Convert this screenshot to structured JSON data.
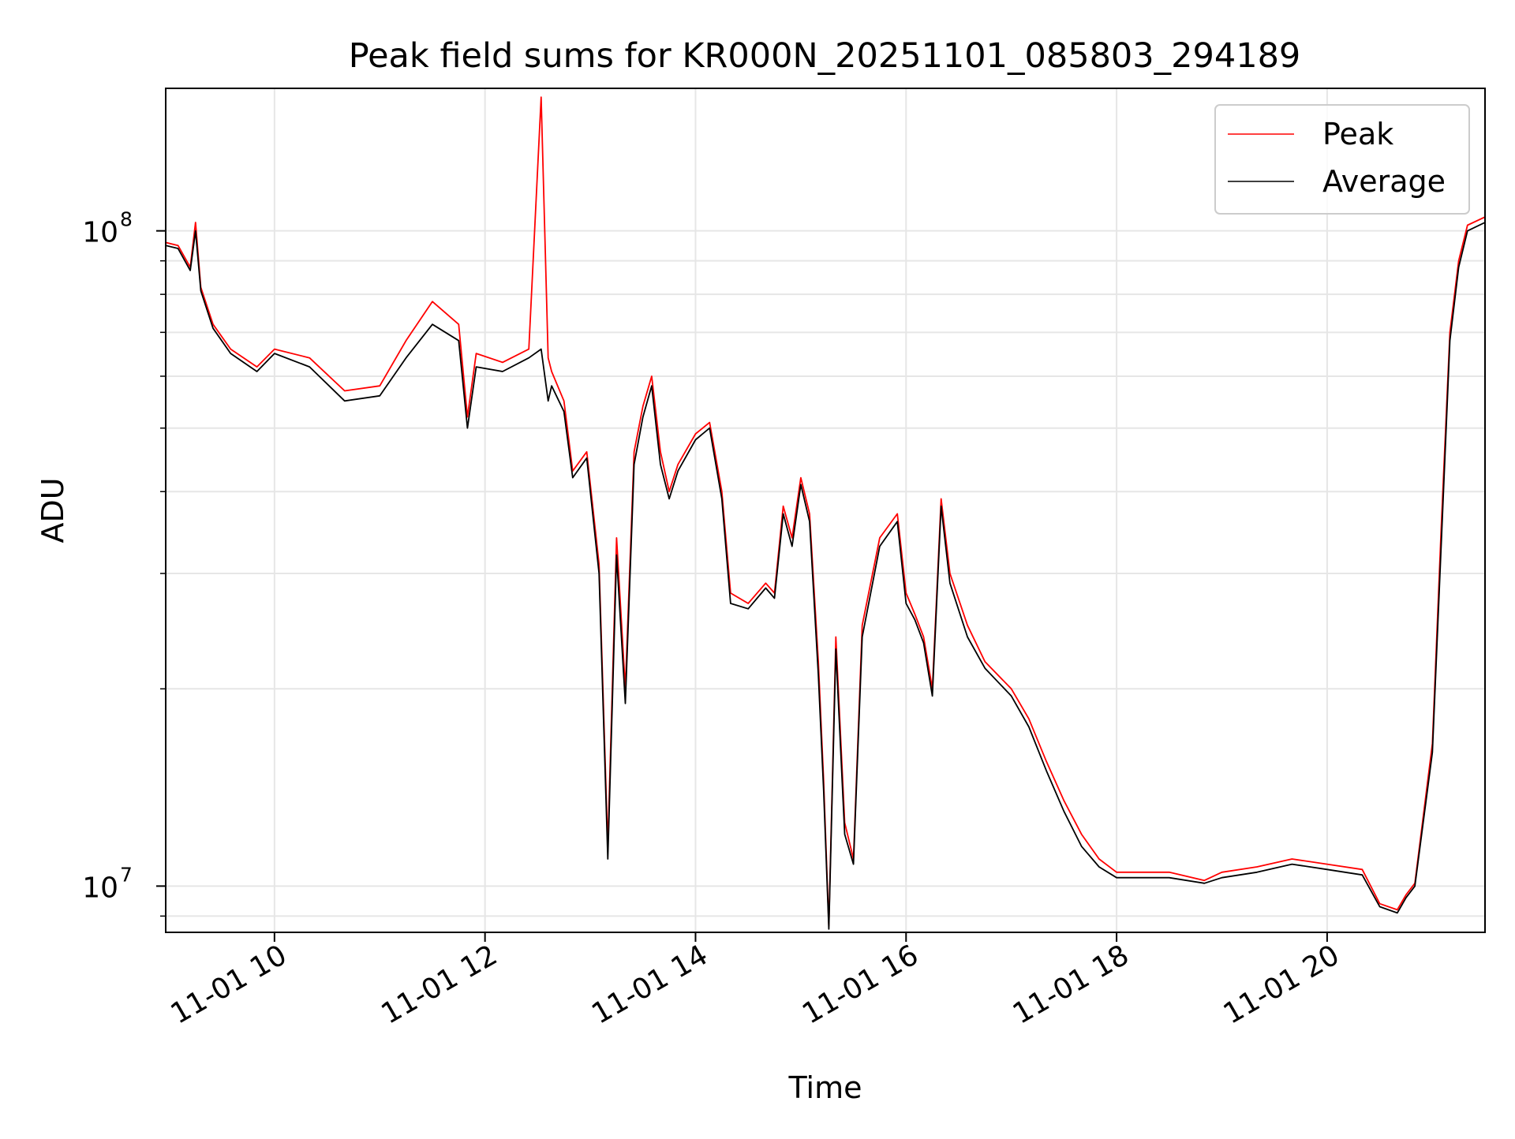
{
  "chart_data": {
    "type": "line",
    "title": "Peak field sums for KR000N_20251101_085803_294189",
    "xlabel": "Time",
    "ylabel": "ADU",
    "y_scale": "log",
    "ylim": [
      8500000,
      165000000
    ],
    "xlim": [
      "2025-11-01T08:58",
      "2025-11-01T21:30"
    ],
    "grid": true,
    "legend_position": "top-right",
    "x_ticks": [
      {
        "label": "11-01 10",
        "value": "2025-11-01T10:00"
      },
      {
        "label": "11-01 12",
        "value": "2025-11-01T12:00"
      },
      {
        "label": "11-01 14",
        "value": "2025-11-01T14:00"
      },
      {
        "label": "11-01 16",
        "value": "2025-11-01T16:00"
      },
      {
        "label": "11-01 18",
        "value": "2025-11-01T18:00"
      },
      {
        "label": "11-01 20",
        "value": "2025-11-01T20:00"
      }
    ],
    "y_ticks": [
      {
        "base": "10",
        "exp": "7",
        "value": 10000000
      },
      {
        "base": "10",
        "exp": "8",
        "value": 100000000
      }
    ],
    "series": [
      {
        "name": "Peak",
        "color": "#ff0000",
        "x": [
          "2025-11-01T08:58",
          "2025-11-01T09:05",
          "2025-11-01T09:12",
          "2025-11-01T09:15",
          "2025-11-01T09:18",
          "2025-11-01T09:25",
          "2025-11-01T09:35",
          "2025-11-01T09:50",
          "2025-11-01T10:00",
          "2025-11-01T10:20",
          "2025-11-01T10:40",
          "2025-11-01T11:00",
          "2025-11-01T11:15",
          "2025-11-01T11:30",
          "2025-11-01T11:45",
          "2025-11-01T11:50",
          "2025-11-01T11:55",
          "2025-11-01T12:10",
          "2025-11-01T12:25",
          "2025-11-01T12:32",
          "2025-11-01T12:36",
          "2025-11-01T12:38",
          "2025-11-01T12:45",
          "2025-11-01T12:50",
          "2025-11-01T12:58",
          "2025-11-01T13:05",
          "2025-11-01T13:10",
          "2025-11-01T13:15",
          "2025-11-01T13:20",
          "2025-11-01T13:25",
          "2025-11-01T13:30",
          "2025-11-01T13:35",
          "2025-11-01T13:40",
          "2025-11-01T13:45",
          "2025-11-01T13:50",
          "2025-11-01T14:00",
          "2025-11-01T14:08",
          "2025-11-01T14:15",
          "2025-11-01T14:20",
          "2025-11-01T14:30",
          "2025-11-01T14:40",
          "2025-11-01T14:45",
          "2025-11-01T14:50",
          "2025-11-01T14:55",
          "2025-11-01T15:00",
          "2025-11-01T15:05",
          "2025-11-01T15:10",
          "2025-11-01T15:13",
          "2025-11-01T15:16",
          "2025-11-01T15:20",
          "2025-11-01T15:25",
          "2025-11-01T15:30",
          "2025-11-01T15:35",
          "2025-11-01T15:45",
          "2025-11-01T15:55",
          "2025-11-01T16:00",
          "2025-11-01T16:05",
          "2025-11-01T16:10",
          "2025-11-01T16:15",
          "2025-11-01T16:20",
          "2025-11-01T16:25",
          "2025-11-01T16:35",
          "2025-11-01T16:45",
          "2025-11-01T17:00",
          "2025-11-01T17:10",
          "2025-11-01T17:20",
          "2025-11-01T17:30",
          "2025-11-01T17:40",
          "2025-11-01T17:50",
          "2025-11-01T18:00",
          "2025-11-01T18:30",
          "2025-11-01T18:50",
          "2025-11-01T19:00",
          "2025-11-01T19:20",
          "2025-11-01T19:40",
          "2025-11-01T20:00",
          "2025-11-01T20:20",
          "2025-11-01T20:30",
          "2025-11-01T20:40",
          "2025-11-01T20:45",
          "2025-11-01T20:50",
          "2025-11-01T21:00",
          "2025-11-01T21:05",
          "2025-11-01T21:10",
          "2025-11-01T21:15",
          "2025-11-01T21:20",
          "2025-11-01T21:30"
        ],
        "values": [
          96000000,
          95000000,
          88000000,
          103000000,
          82000000,
          72000000,
          66000000,
          62000000,
          66000000,
          64000000,
          57000000,
          58000000,
          68000000,
          78000000,
          72000000,
          52000000,
          65000000,
          63000000,
          66000000,
          160000000,
          64000000,
          61000000,
          55000000,
          43000000,
          46000000,
          31000000,
          11500000,
          34000000,
          20000000,
          46000000,
          54000000,
          60000000,
          46000000,
          40000000,
          44000000,
          49000000,
          51000000,
          40000000,
          28000000,
          27000000,
          29000000,
          28000000,
          38000000,
          34000000,
          42000000,
          37000000,
          22000000,
          14500000,
          8700000,
          24000000,
          12500000,
          11000000,
          25000000,
          34000000,
          37000000,
          28000000,
          26000000,
          24000000,
          20000000,
          39000000,
          30000000,
          25000000,
          22000000,
          20000000,
          18000000,
          15500000,
          13500000,
          12000000,
          11000000,
          10500000,
          10500000,
          10200000,
          10500000,
          10700000,
          11000000,
          10800000,
          10600000,
          9400000,
          9200000,
          9700000,
          10100000,
          16500000,
          35000000,
          70000000,
          90000000,
          102000000,
          105000000
        ]
      },
      {
        "name": "Average",
        "color": "#000000",
        "x": [
          "2025-11-01T08:58",
          "2025-11-01T09:05",
          "2025-11-01T09:12",
          "2025-11-01T09:15",
          "2025-11-01T09:18",
          "2025-11-01T09:25",
          "2025-11-01T09:35",
          "2025-11-01T09:50",
          "2025-11-01T10:00",
          "2025-11-01T10:20",
          "2025-11-01T10:40",
          "2025-11-01T11:00",
          "2025-11-01T11:15",
          "2025-11-01T11:30",
          "2025-11-01T11:45",
          "2025-11-01T11:50",
          "2025-11-01T11:55",
          "2025-11-01T12:10",
          "2025-11-01T12:25",
          "2025-11-01T12:32",
          "2025-11-01T12:36",
          "2025-11-01T12:38",
          "2025-11-01T12:45",
          "2025-11-01T12:50",
          "2025-11-01T12:58",
          "2025-11-01T13:05",
          "2025-11-01T13:10",
          "2025-11-01T13:15",
          "2025-11-01T13:20",
          "2025-11-01T13:25",
          "2025-11-01T13:30",
          "2025-11-01T13:35",
          "2025-11-01T13:40",
          "2025-11-01T13:45",
          "2025-11-01T13:50",
          "2025-11-01T14:00",
          "2025-11-01T14:08",
          "2025-11-01T14:15",
          "2025-11-01T14:20",
          "2025-11-01T14:30",
          "2025-11-01T14:40",
          "2025-11-01T14:45",
          "2025-11-01T14:50",
          "2025-11-01T14:55",
          "2025-11-01T15:00",
          "2025-11-01T15:05",
          "2025-11-01T15:10",
          "2025-11-01T15:13",
          "2025-11-01T15:16",
          "2025-11-01T15:20",
          "2025-11-01T15:25",
          "2025-11-01T15:30",
          "2025-11-01T15:35",
          "2025-11-01T15:45",
          "2025-11-01T15:55",
          "2025-11-01T16:00",
          "2025-11-01T16:05",
          "2025-11-01T16:10",
          "2025-11-01T16:15",
          "2025-11-01T16:20",
          "2025-11-01T16:25",
          "2025-11-01T16:35",
          "2025-11-01T16:45",
          "2025-11-01T17:00",
          "2025-11-01T17:10",
          "2025-11-01T17:20",
          "2025-11-01T17:30",
          "2025-11-01T17:40",
          "2025-11-01T17:50",
          "2025-11-01T18:00",
          "2025-11-01T18:30",
          "2025-11-01T18:50",
          "2025-11-01T19:00",
          "2025-11-01T19:20",
          "2025-11-01T19:40",
          "2025-11-01T20:00",
          "2025-11-01T20:20",
          "2025-11-01T20:30",
          "2025-11-01T20:40",
          "2025-11-01T20:45",
          "2025-11-01T20:50",
          "2025-11-01T21:00",
          "2025-11-01T21:05",
          "2025-11-01T21:10",
          "2025-11-01T21:15",
          "2025-11-01T21:20",
          "2025-11-01T21:30"
        ],
        "values": [
          95000000,
          94000000,
          87000000,
          100000000,
          81000000,
          71000000,
          65000000,
          61000000,
          65000000,
          62000000,
          55000000,
          56000000,
          64000000,
          72000000,
          68000000,
          50000000,
          62000000,
          61000000,
          64000000,
          66000000,
          55000000,
          58000000,
          53000000,
          42000000,
          45000000,
          30000000,
          11000000,
          32000000,
          19000000,
          44000000,
          52000000,
          58000000,
          44000000,
          39000000,
          43000000,
          48000000,
          50000000,
          39000000,
          27000000,
          26500000,
          28500000,
          27500000,
          37000000,
          33000000,
          41000000,
          36000000,
          21000000,
          14000000,
          8600000,
          23000000,
          12000000,
          10800000,
          24000000,
          33000000,
          36000000,
          27000000,
          25500000,
          23500000,
          19500000,
          38000000,
          29000000,
          24000000,
          21500000,
          19500000,
          17500000,
          15000000,
          13000000,
          11500000,
          10700000,
          10300000,
          10300000,
          10100000,
          10300000,
          10500000,
          10800000,
          10600000,
          10400000,
          9300000,
          9100000,
          9600000,
          10000000,
          16000000,
          33000000,
          68000000,
          88000000,
          100000000,
          103000000
        ]
      }
    ]
  }
}
